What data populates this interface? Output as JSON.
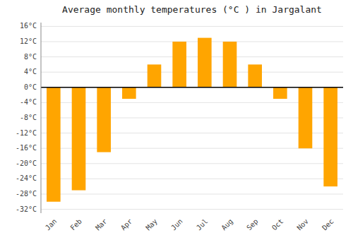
{
  "chart_data": {
    "type": "bar",
    "title": "Average monthly temperatures (°C ) in Jargalant",
    "categories": [
      "Jan",
      "Feb",
      "Mar",
      "Apr",
      "May",
      "Jun",
      "Jul",
      "Aug",
      "Sep",
      "Oct",
      "Nov",
      "Dec"
    ],
    "values": [
      -30,
      -27,
      -17,
      -3,
      6,
      12,
      13,
      12,
      6,
      -3,
      -16,
      -26
    ],
    "color": "#FFA500",
    "ylim": [
      -33,
      17
    ],
    "yticks": [
      {
        "value": -32,
        "label": "-32°C"
      },
      {
        "value": -28,
        "label": "-28°C"
      },
      {
        "value": -24,
        "label": "-24°C"
      },
      {
        "value": -20,
        "label": "-20°C"
      },
      {
        "value": -16,
        "label": "-16°C"
      },
      {
        "value": -12,
        "label": "-12°C"
      },
      {
        "value": -8,
        "label": "-8°C"
      },
      {
        "value": -4,
        "label": "-4°C"
      },
      {
        "value": 0,
        "label": "0°C"
      },
      {
        "value": 4,
        "label": "4°C"
      },
      {
        "value": 8,
        "label": "8°C"
      },
      {
        "value": 12,
        "label": "12°C"
      },
      {
        "value": 16,
        "label": "16°C"
      }
    ],
    "grid": true
  }
}
